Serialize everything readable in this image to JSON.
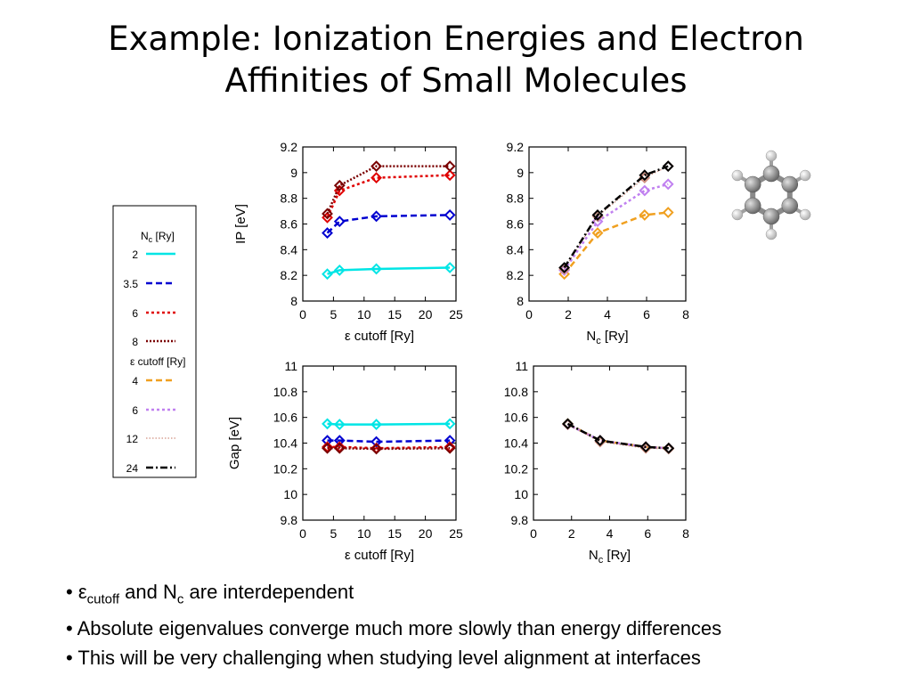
{
  "title": {
    "line1": "Example: Ionization Energies and Electron",
    "line2": "Affinities of Small Molecules"
  },
  "legend": {
    "nc_header": "N",
    "nc_header_sub": "c",
    "nc_header_unit": " [Ry]",
    "nc_items": [
      {
        "label": "2",
        "color": "#00e5e5",
        "style": "solid"
      },
      {
        "label": "3.5",
        "color": "#0000d0",
        "style": "dashed"
      },
      {
        "label": "6",
        "color": "#e00000",
        "style": "dotted"
      },
      {
        "label": "8",
        "color": "#7a0000",
        "style": "densedot"
      }
    ],
    "ec_header": "ε cutoff [Ry]",
    "ec_items": [
      {
        "label": "4",
        "color": "#f0a020",
        "style": "dashed"
      },
      {
        "label": "6",
        "color": "#c080f0",
        "style": "dotted"
      },
      {
        "label": "12",
        "color": "#d09080",
        "style": "finedot"
      },
      {
        "label": "24",
        "color": "#000000",
        "style": "dashdot"
      }
    ]
  },
  "molecule_icon": "benzene-ball-and-stick",
  "bullets": [
    {
      "pre": "ε",
      "sub": "cutoff",
      "mid": " and N",
      "sub2": "c",
      "post": " are interdependent"
    },
    {
      "text": "Absolute eigenvalues converge much more slowly than energy differences"
    },
    {
      "text": "This will be very challenging when studying level alignment at interfaces"
    }
  ],
  "chart_data": [
    {
      "type": "line",
      "id": "ip-vs-ecut",
      "xlabel": "ε cutoff [Ry]",
      "ylabel": "IP [eV]",
      "xlim": [
        0,
        25
      ],
      "ylim": [
        8,
        9.2
      ],
      "xticks": [
        "0",
        "5",
        "10",
        "15",
        "20",
        "25"
      ],
      "yticks": [
        "8",
        "8.2",
        "8.4",
        "8.6",
        "8.8",
        "9",
        "9.2"
      ],
      "x": [
        4,
        6,
        12,
        24
      ],
      "series": [
        {
          "name": "2",
          "color": "#00e5e5",
          "style": "solid",
          "values": [
            8.21,
            8.24,
            8.25,
            8.26
          ]
        },
        {
          "name": "3.5",
          "color": "#0000d0",
          "style": "dashed",
          "values": [
            8.53,
            8.62,
            8.66,
            8.67
          ]
        },
        {
          "name": "6",
          "color": "#e00000",
          "style": "dotted",
          "values": [
            8.65,
            8.86,
            8.96,
            8.98
          ]
        },
        {
          "name": "8",
          "color": "#7a0000",
          "style": "densedot",
          "values": [
            8.68,
            8.9,
            9.05,
            9.05
          ]
        }
      ]
    },
    {
      "type": "line",
      "id": "ip-vs-nc",
      "xlabel": "N_c [Ry]",
      "ylabel": "",
      "xlim": [
        0,
        8
      ],
      "ylim": [
        8,
        9.2
      ],
      "xticks": [
        "0",
        "2",
        "4",
        "6",
        "8"
      ],
      "yticks": [
        "8",
        "8.2",
        "8.4",
        "8.6",
        "8.8",
        "9",
        "9.2"
      ],
      "x": [
        1.8,
        3.5,
        5.9,
        7.1
      ],
      "series": [
        {
          "name": "4",
          "color": "#f0a020",
          "style": "dashed",
          "values": [
            8.21,
            8.53,
            8.67,
            8.69
          ]
        },
        {
          "name": "6",
          "color": "#c080f0",
          "style": "dotted",
          "values": [
            8.24,
            8.62,
            8.86,
            8.91
          ]
        },
        {
          "name": "12",
          "color": "#d09080",
          "style": "finedot",
          "values": [
            8.25,
            8.66,
            8.96,
            9.05
          ]
        },
        {
          "name": "24",
          "color": "#000000",
          "style": "dashdot",
          "values": [
            8.26,
            8.67,
            8.98,
            9.05
          ]
        }
      ]
    },
    {
      "type": "line",
      "id": "gap-vs-ecut",
      "xlabel": "ε cutoff [Ry]",
      "ylabel": "Gap [eV]",
      "xlim": [
        0,
        25
      ],
      "ylim": [
        9.8,
        11
      ],
      "xticks": [
        "0",
        "5",
        "10",
        "15",
        "20",
        "25"
      ],
      "yticks": [
        "9.8",
        "10",
        "10.2",
        "10.4",
        "10.6",
        "10.8",
        "11"
      ],
      "x": [
        4,
        6,
        12,
        24
      ],
      "series": [
        {
          "name": "2",
          "color": "#00e5e5",
          "style": "solid",
          "values": [
            10.55,
            10.545,
            10.545,
            10.55
          ]
        },
        {
          "name": "3.5",
          "color": "#0000d0",
          "style": "dashed",
          "values": [
            10.42,
            10.42,
            10.41,
            10.42
          ]
        },
        {
          "name": "6",
          "color": "#e00000",
          "style": "dotted",
          "values": [
            10.37,
            10.37,
            10.36,
            10.37
          ]
        },
        {
          "name": "8",
          "color": "#7a0000",
          "style": "densedot",
          "values": [
            10.36,
            10.36,
            10.355,
            10.36
          ]
        }
      ]
    },
    {
      "type": "line",
      "id": "gap-vs-nc",
      "xlabel": "N_c [Ry]",
      "ylabel": "",
      "xlim": [
        0,
        8
      ],
      "ylim": [
        9.8,
        11
      ],
      "xticks": [
        "0",
        "2",
        "4",
        "6",
        "8"
      ],
      "yticks": [
        "9.8",
        "10",
        "10.2",
        "10.4",
        "10.6",
        "10.8",
        "11"
      ],
      "x": [
        1.8,
        3.5,
        5.9,
        7.1
      ],
      "series": [
        {
          "name": "4",
          "color": "#f0a020",
          "style": "dashed",
          "values": [
            10.55,
            10.42,
            10.37,
            10.36
          ]
        },
        {
          "name": "6",
          "color": "#c080f0",
          "style": "dotted",
          "values": [
            10.545,
            10.42,
            10.37,
            10.36
          ]
        },
        {
          "name": "12",
          "color": "#d09080",
          "style": "finedot",
          "values": [
            10.545,
            10.41,
            10.36,
            10.355
          ]
        },
        {
          "name": "24",
          "color": "#000000",
          "style": "dashdot",
          "values": [
            10.55,
            10.42,
            10.37,
            10.36
          ]
        }
      ]
    }
  ]
}
